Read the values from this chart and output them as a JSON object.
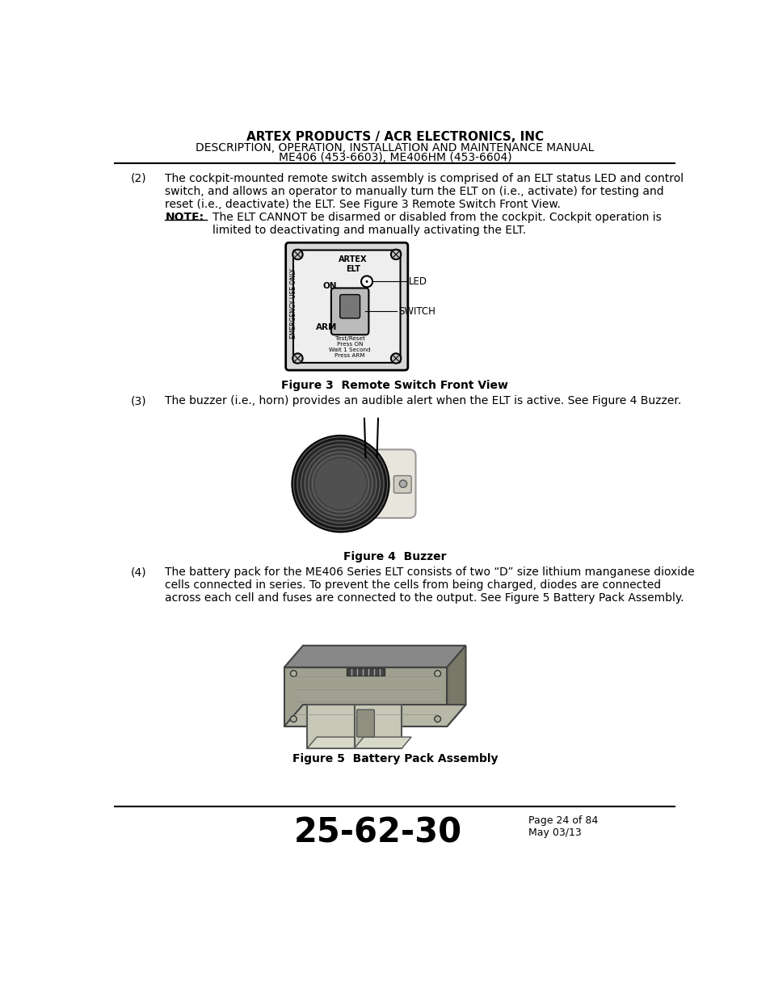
{
  "bg_color": "#ffffff",
  "header_line1": "ARTEX PRODUCTS / ACR ELECTRONICS, INC",
  "header_line2": "DESCRIPTION, OPERATION, INSTALLATION AND MAINTENANCE MANUAL",
  "header_line3": "ME406 (453-6603), ME406HM (453-6604)",
  "footer_code": "25-62-30",
  "footer_page": "Page 24 of 84",
  "footer_date": "May 03/13",
  "para2_label": "(2)",
  "para2_text": "The cockpit-mounted remote switch assembly is comprised of an ELT status LED and control\nswitch, and allows an operator to manually turn the ELT on (i.e., activate) for testing and\nreset (i.e., deactivate) the ELT. See Figure 3 Remote Switch Front View.",
  "note_label": "NOTE:",
  "note_text": "The ELT CANNOT be disarmed or disabled from the cockpit. Cockpit operation is\nlimited to deactivating and manually activating the ELT.",
  "fig3_caption": "Figure 3  Remote Switch Front View",
  "para3_label": "(3)",
  "para3_text": "The buzzer (i.e., horn) provides an audible alert when the ELT is active. See Figure 4 Buzzer.",
  "fig4_caption": "Figure 4  Buzzer",
  "para4_label": "(4)",
  "para4_text": "The battery pack for the ME406 Series ELT consists of two “D” size lithium manganese dioxide\ncells connected in series. To prevent the cells from being charged, diodes are connected\nacross each cell and fuses are connected to the output. See Figure 5 Battery Pack Assembly.",
  "fig5_caption": "Figure 5  Battery Pack Assembly"
}
